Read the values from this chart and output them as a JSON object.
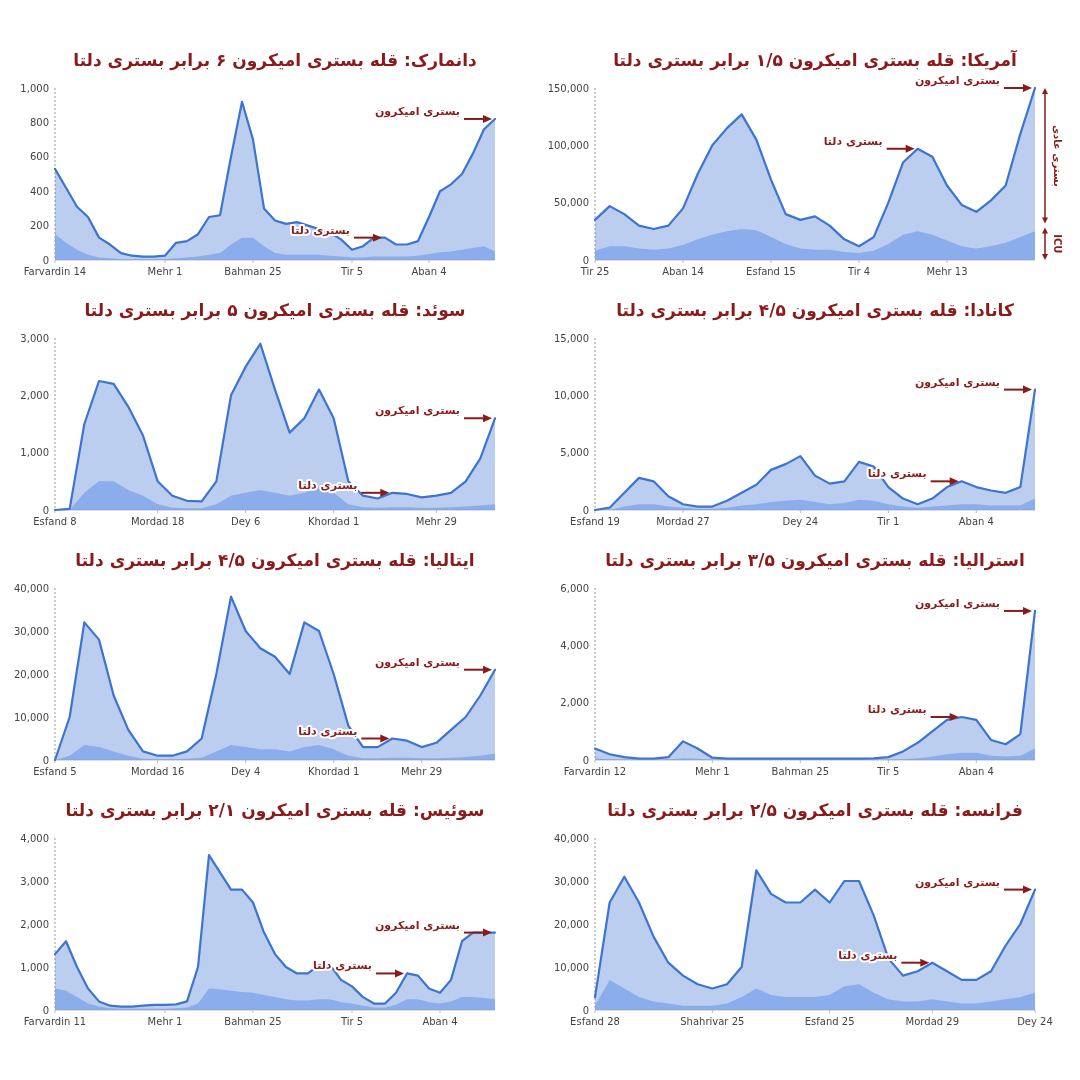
{
  "chart_data": [
    {
      "type": "area",
      "title": "دانمارک: قله بستری امیکرون ۶ برابر بستری دلتا",
      "categories": [
        "Farvardin 14",
        null,
        null,
        null,
        null,
        null,
        null,
        null,
        null,
        null,
        "Mehr 1",
        null,
        null,
        null,
        null,
        null,
        null,
        null,
        "Bahman 25",
        null,
        null,
        null,
        null,
        null,
        null,
        null,
        null,
        "Tir 5",
        null,
        null,
        null,
        null,
        null,
        null,
        "Aban 4",
        null,
        null,
        null,
        null,
        null,
        null
      ],
      "series": [
        {
          "color": "#3d74d0",
          "values": [
            530,
            420,
            310,
            250,
            130,
            90,
            40,
            25,
            20,
            20,
            25,
            100,
            110,
            150,
            250,
            260,
            600,
            920,
            700,
            300,
            230,
            210,
            220,
            200,
            180,
            160,
            120,
            60,
            80,
            130,
            130,
            90,
            90,
            110,
            250,
            400,
            440,
            500,
            620,
            760,
            820
          ]
        },
        {
          "color": "#7ba1ea",
          "values": [
            150,
            100,
            60,
            30,
            15,
            10,
            5,
            5,
            5,
            5,
            5,
            10,
            15,
            20,
            30,
            40,
            90,
            130,
            130,
            80,
            40,
            30,
            30,
            30,
            30,
            25,
            20,
            15,
            15,
            20,
            20,
            20,
            20,
            25,
            35,
            45,
            50,
            60,
            70,
            80,
            50
          ]
        }
      ],
      "ylim": [
        0,
        1000
      ],
      "yticks": [
        0,
        200,
        400,
        600,
        800,
        {
          "value": 1000,
          "label": "1,000"
        }
      ],
      "annotations": [
        "بستری امیکرون",
        "بستری دلتا"
      ]
    },
    {
      "type": "area",
      "title": "آمریکا: قله بستری امیکرون ۱/۵ برابر بستری دلتا",
      "categories": [
        "Tir 25",
        null,
        null,
        null,
        null,
        null,
        "Aban 14",
        null,
        null,
        null,
        null,
        null,
        "Esfand 15",
        null,
        null,
        null,
        null,
        null,
        "Tir 4",
        null,
        null,
        null,
        null,
        null,
        "Mehr 13",
        null,
        null,
        null,
        null,
        null,
        null
      ],
      "series": [
        {
          "color": "#3d74d0",
          "values": [
            35000,
            47000,
            40000,
            30000,
            27000,
            30000,
            45000,
            75000,
            100000,
            115000,
            127000,
            105000,
            70000,
            40000,
            35000,
            38000,
            30000,
            18000,
            12000,
            20000,
            50000,
            85000,
            97000,
            90000,
            65000,
            48000,
            42000,
            52000,
            65000,
            110000,
            150000
          ]
        },
        {
          "color": "#7ba1ea",
          "values": [
            8000,
            12000,
            12000,
            10000,
            9000,
            10000,
            13000,
            18000,
            22000,
            25000,
            27000,
            26000,
            20000,
            14000,
            10000,
            9000,
            9000,
            7000,
            6000,
            8000,
            14000,
            22000,
            25000,
            22000,
            17000,
            12000,
            10000,
            12000,
            15000,
            20000,
            25000
          ]
        }
      ],
      "ylim": [
        0,
        150000
      ],
      "yticks": [
        0,
        {
          "value": 50000,
          "label": "50,000"
        },
        {
          "value": 100000,
          "label": "100,000"
        },
        {
          "value": 150000,
          "label": "150,000"
        }
      ],
      "annotations": [
        "بستری امیکرون",
        "بستری دلتا",
        "بستری عادی",
        "ICU"
      ]
    },
    {
      "type": "area",
      "title": "سوئد: قله بستری امیکرون ۵ برابر بستری دلتا",
      "categories": [
        "Esfand 8",
        null,
        null,
        null,
        null,
        null,
        null,
        "Mordad 18",
        null,
        null,
        null,
        null,
        null,
        "Dey 6",
        null,
        null,
        null,
        null,
        null,
        "Khordad 1",
        null,
        null,
        null,
        null,
        null,
        null,
        "Mehr 29",
        null,
        null,
        null,
        null
      ],
      "series": [
        {
          "color": "#3d74d0",
          "values": [
            0,
            20,
            1500,
            2250,
            2200,
            1800,
            1300,
            500,
            250,
            160,
            150,
            500,
            2000,
            2500,
            2900,
            2100,
            1350,
            1600,
            2100,
            1600,
            500,
            250,
            200,
            300,
            280,
            220,
            250,
            300,
            500,
            900,
            1600
          ]
        },
        {
          "color": "#7ba1ea",
          "values": [
            0,
            0,
            300,
            500,
            500,
            350,
            250,
            100,
            40,
            30,
            30,
            100,
            250,
            300,
            350,
            300,
            250,
            300,
            400,
            300,
            100,
            50,
            40,
            50,
            50,
            40,
            40,
            50,
            60,
            80,
            100
          ]
        }
      ],
      "ylim": [
        0,
        3000
      ],
      "yticks": [
        0,
        {
          "value": 1000,
          "label": "1,000"
        },
        {
          "value": 2000,
          "label": "2,000"
        },
        {
          "value": 3000,
          "label": "3,000"
        }
      ],
      "annotations": [
        "بستری امیکرون",
        "بستری دلتا"
      ]
    },
    {
      "type": "area",
      "title": "کانادا: قله بستری امیکرون ۴/۵ برابر بستری دلتا",
      "categories": [
        "Esfand 19",
        null,
        null,
        null,
        null,
        null,
        "Mordad 27",
        null,
        null,
        null,
        null,
        null,
        null,
        null,
        "Dey 24",
        null,
        null,
        null,
        null,
        null,
        "Tir 1",
        null,
        null,
        null,
        null,
        null,
        "Aban 4",
        null,
        null,
        null,
        null
      ],
      "series": [
        {
          "color": "#3d74d0",
          "values": [
            0,
            200,
            1500,
            2800,
            2500,
            1200,
            500,
            300,
            300,
            800,
            1500,
            2200,
            3500,
            4000,
            4700,
            3000,
            2300,
            2500,
            4200,
            3800,
            2000,
            1000,
            500,
            1000,
            2000,
            2500,
            2000,
            1700,
            1500,
            2000,
            10500
          ]
        },
        {
          "color": "#7ba1ea",
          "values": [
            0,
            0,
            300,
            500,
            500,
            300,
            200,
            100,
            100,
            200,
            400,
            500,
            700,
            800,
            900,
            700,
            500,
            600,
            900,
            800,
            500,
            300,
            200,
            300,
            400,
            500,
            500,
            400,
            400,
            400,
            1000
          ]
        }
      ],
      "ylim": [
        0,
        15000
      ],
      "yticks": [
        0,
        {
          "value": 5000,
          "label": "5,000"
        },
        {
          "value": 10000,
          "label": "10,000"
        },
        {
          "value": 15000,
          "label": "15,000"
        }
      ],
      "annotations": [
        "بستری امیکرون",
        "بستری دلتا"
      ]
    },
    {
      "type": "area",
      "title": "ایتالیا: قله بستری امیکرون ۴/۵ برابر بستری دلتا",
      "categories": [
        "Esfand 5",
        null,
        null,
        null,
        null,
        null,
        null,
        "Mordad 16",
        null,
        null,
        null,
        null,
        null,
        "Dey 4",
        null,
        null,
        null,
        null,
        null,
        "Khordad 1",
        null,
        null,
        null,
        null,
        null,
        "Mehr 29",
        null,
        null,
        null,
        null,
        null
      ],
      "series": [
        {
          "color": "#3d74d0",
          "values": [
            0,
            10000,
            32000,
            28000,
            15000,
            7000,
            2000,
            1000,
            1000,
            2000,
            5000,
            20000,
            38000,
            30000,
            26000,
            24000,
            20000,
            32000,
            30000,
            20000,
            8000,
            3000,
            3000,
            5000,
            4500,
            3000,
            4000,
            7000,
            10000,
            15000,
            21000
          ]
        },
        {
          "color": "#7ba1ea",
          "values": [
            0,
            1000,
            3500,
            3000,
            2000,
            1000,
            300,
            200,
            200,
            300,
            500,
            2000,
            3500,
            3000,
            2500,
            2500,
            2000,
            3000,
            3500,
            2500,
            1000,
            400,
            400,
            500,
            500,
            400,
            400,
            500,
            700,
            1000,
            1500
          ]
        }
      ],
      "ylim": [
        0,
        40000
      ],
      "yticks": [
        0,
        {
          "value": 10000,
          "label": "10,000"
        },
        {
          "value": 20000,
          "label": "20,000"
        },
        {
          "value": 30000,
          "label": "30,000"
        },
        {
          "value": 40000,
          "label": "40,000"
        }
      ],
      "annotations": [
        "بستری امیکرون",
        "بستری دلتا"
      ]
    },
    {
      "type": "area",
      "title": "استرالیا: قله بستری امیکرون ۳/۵ برابر بستری دلتا",
      "categories": [
        "Farvardin 12",
        null,
        null,
        null,
        null,
        null,
        null,
        null,
        "Mehr 1",
        null,
        null,
        null,
        null,
        null,
        "Bahman 25",
        null,
        null,
        null,
        null,
        null,
        "Tir 5",
        null,
        null,
        null,
        null,
        null,
        "Aban 4",
        null,
        null,
        null,
        null
      ],
      "series": [
        {
          "color": "#3d74d0",
          "values": [
            400,
            200,
            100,
            50,
            50,
            100,
            650,
            400,
            80,
            50,
            50,
            50,
            50,
            50,
            50,
            50,
            50,
            50,
            50,
            60,
            100,
            300,
            600,
            1000,
            1400,
            1500,
            1400,
            700,
            550,
            900,
            5200
          ]
        },
        {
          "color": "#7ba1ea",
          "values": [
            50,
            30,
            20,
            10,
            10,
            20,
            60,
            40,
            10,
            0,
            0,
            0,
            0,
            0,
            0,
            0,
            0,
            0,
            0,
            0,
            10,
            30,
            60,
            120,
            200,
            250,
            250,
            150,
            120,
            150,
            400
          ]
        }
      ],
      "ylim": [
        0,
        6000
      ],
      "yticks": [
        0,
        {
          "value": 2000,
          "label": "2,000"
        },
        {
          "value": 4000,
          "label": "4,000"
        },
        {
          "value": 6000,
          "label": "6,000"
        }
      ],
      "annotations": [
        "بستری امیکرون",
        "بستری دلتا"
      ]
    },
    {
      "type": "area",
      "title": "سوئیس: قله بستری امیکرون ۲/۱ برابر بستری دلتا",
      "categories": [
        "Farvardin 11",
        null,
        null,
        null,
        null,
        null,
        null,
        null,
        null,
        null,
        "Mehr 1",
        null,
        null,
        null,
        null,
        null,
        null,
        null,
        "Bahman 25",
        null,
        null,
        null,
        null,
        null,
        null,
        null,
        null,
        "Tir 5",
        null,
        null,
        null,
        null,
        null,
        null,
        null,
        "Aban 4",
        null,
        null,
        null,
        null,
        null
      ],
      "series": [
        {
          "color": "#3d74d0",
          "values": [
            1300,
            1600,
            1000,
            500,
            200,
            100,
            80,
            80,
            100,
            120,
            120,
            130,
            200,
            1000,
            3600,
            3200,
            2800,
            2800,
            2500,
            1800,
            1300,
            1000,
            850,
            850,
            1050,
            1050,
            700,
            550,
            300,
            150,
            150,
            400,
            850,
            800,
            500,
            400,
            700,
            1600,
            1800,
            1800,
            1800
          ]
        },
        {
          "color": "#7ba1ea",
          "values": [
            500,
            450,
            300,
            150,
            80,
            40,
            30,
            30,
            30,
            30,
            30,
            40,
            60,
            150,
            500,
            480,
            450,
            420,
            400,
            350,
            300,
            250,
            220,
            220,
            250,
            250,
            180,
            150,
            100,
            60,
            60,
            120,
            250,
            250,
            180,
            150,
            200,
            300,
            300,
            280,
            250
          ]
        }
      ],
      "ylim": [
        0,
        4000
      ],
      "yticks": [
        0,
        {
          "value": 1000,
          "label": "1,000"
        },
        {
          "value": 2000,
          "label": "2,000"
        },
        {
          "value": 3000,
          "label": "3,000"
        },
        {
          "value": 4000,
          "label": "4,000"
        }
      ],
      "annotations": [
        "بستری امیکرون",
        "بستری دلتا"
      ]
    },
    {
      "type": "area",
      "title": "فرانسه: قله بستری امیکرون ۲/۵ برابر بستری دلتا",
      "categories": [
        "Esfand 28",
        null,
        null,
        null,
        null,
        null,
        null,
        null,
        "Shahrivar 25",
        null,
        null,
        null,
        null,
        null,
        null,
        null,
        "Esfand 25",
        null,
        null,
        null,
        null,
        null,
        null,
        "Mordad 29",
        null,
        null,
        null,
        null,
        null,
        null,
        "Dey 24"
      ],
      "series": [
        {
          "color": "#3d74d0",
          "values": [
            3000,
            25000,
            31000,
            25000,
            17000,
            11000,
            8000,
            6000,
            5000,
            6000,
            10000,
            32500,
            27000,
            25000,
            25000,
            28000,
            25000,
            30000,
            30000,
            22000,
            12000,
            8000,
            9000,
            11000,
            9000,
            7000,
            7000,
            9000,
            15000,
            20000,
            28000
          ]
        },
        {
          "color": "#7ba1ea",
          "values": [
            1000,
            7000,
            5000,
            3000,
            2000,
            1500,
            1000,
            1000,
            1000,
            1500,
            3000,
            5000,
            3500,
            3000,
            3000,
            3000,
            3500,
            5500,
            6000,
            4000,
            2500,
            2000,
            2000,
            2500,
            2000,
            1500,
            1500,
            2000,
            2500,
            3000,
            4000
          ]
        }
      ],
      "ylim": [
        0,
        40000
      ],
      "yticks": [
        0,
        {
          "value": 10000,
          "label": "10,000"
        },
        {
          "value": 20000,
          "label": "20,000"
        },
        {
          "value": 30000,
          "label": "30,000"
        },
        {
          "value": 40000,
          "label": "40,000"
        }
      ],
      "annotations": [
        "بستری امیکرون",
        "بستری دلتا"
      ]
    }
  ]
}
